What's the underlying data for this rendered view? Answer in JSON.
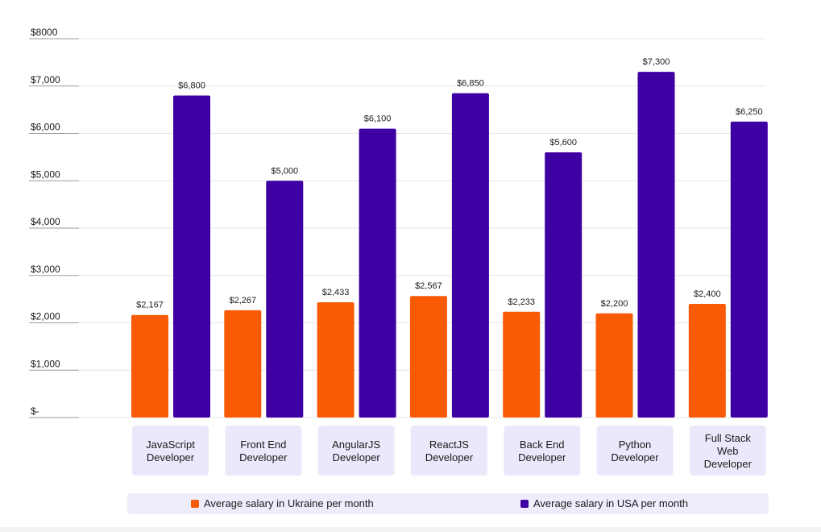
{
  "chart_data": {
    "type": "bar",
    "categories": [
      [
        "JavaScript",
        "Developer"
      ],
      [
        "Front End",
        "Developer"
      ],
      [
        "AngularJS",
        "Developer"
      ],
      [
        "ReactJS",
        "Developer"
      ],
      [
        "Back End",
        "Developer"
      ],
      [
        "Python",
        "Developer"
      ],
      [
        "Full Stack",
        "Web",
        "Developer"
      ]
    ],
    "series": [
      {
        "name": "Average salary in Ukraine per month",
        "color": "#f85a05",
        "values": [
          2167,
          2267,
          2433,
          2567,
          2233,
          2200,
          2400
        ],
        "labels": [
          "$2,167",
          "$2,267",
          "$2,433",
          "$2,567",
          "$2,233",
          "$2,200",
          "$2,400"
        ]
      },
      {
        "name": "Average salary in USA per month",
        "color": "#3f00a3",
        "values": [
          6800,
          5000,
          6100,
          6850,
          5600,
          7300,
          6250
        ],
        "labels": [
          "$6,800",
          "$5,000",
          "$6,100",
          "$6,850",
          "$5,600",
          "$7,300",
          "$6,250"
        ]
      }
    ],
    "yticks": [
      {
        "value": 0,
        "label": "$-"
      },
      {
        "value": 1000,
        "label": "$1,000"
      },
      {
        "value": 2000,
        "label": "$2,000"
      },
      {
        "value": 3000,
        "label": "$3,000"
      },
      {
        "value": 4000,
        "label": "$4,000"
      },
      {
        "value": 5000,
        "label": "$5,000"
      },
      {
        "value": 6000,
        "label": "$6,000"
      },
      {
        "value": 7000,
        "label": "$7,000"
      },
      {
        "value": 8000,
        "label": "$8000"
      }
    ],
    "ylim": [
      0,
      8000
    ],
    "title": "",
    "xlabel": "",
    "ylabel": "",
    "grid": true,
    "legend_position": "bottom",
    "category_box_color": "#ece8fb",
    "legend_box_color": "#efedfb"
  }
}
